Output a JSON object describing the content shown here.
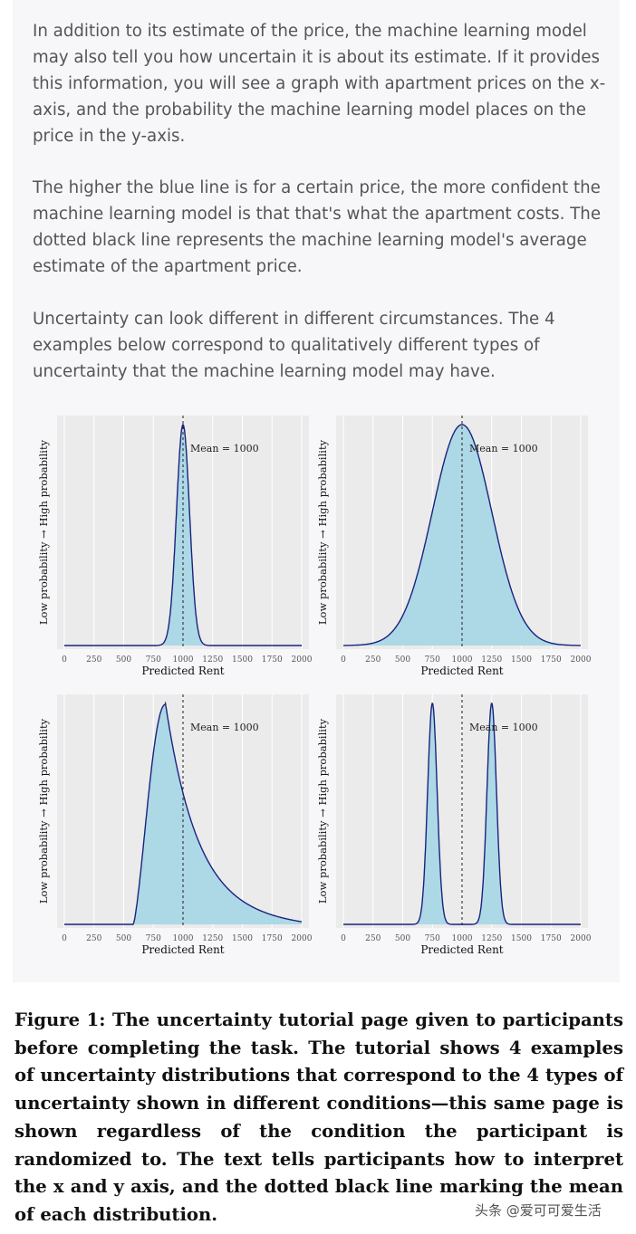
{
  "paragraphs": [
    "In addition to its estimate of the price, the machine learning model may also tell you how uncertain it is about its estimate.  If it provides this information, you will see a graph with apartment prices on the x-axis, and the probability the machine learning model places on the price in the y-axis.",
    "The higher the blue line is for a certain price, the more confident the machine learning model is that that's what the apartment costs.  The dotted black line represents the machine learning model's average estimate of the apartment price.",
    "Uncertainty can look different in different circumstances.  The 4 examples below correspond to qualitatively different types of uncertainty that the machine learning model may have."
  ],
  "caption": "Figure 1: The uncertainty tutorial page given to participants before completing the task. The tutorial shows 4 examples of uncertainty distributions that correspond to the 4 types of uncertainty shown in different conditions—this same page is shown regardless of the condition the participant is randomized to. The text tells participants how to interpret the x and y axis, and the dotted black line marking the mean of each distribution.",
  "watermark": "头条 @爱可可爱生活",
  "colors": {
    "fill": "#add8e6",
    "line": "#1a237e",
    "grid_bg": "#ebebeb"
  },
  "chart_data": [
    {
      "type": "area",
      "xlabel": "Predicted Rent",
      "ylabel": "Low probability → High probability",
      "xlim": [
        0,
        2000
      ],
      "x_ticks": [
        0,
        250,
        500,
        750,
        1000,
        1250,
        1500,
        1750,
        2000
      ],
      "mean": 1000,
      "annotation": "Mean = 1000",
      "components": [
        {
          "mu": 1000,
          "sigma": 55,
          "weight": 1
        }
      ]
    },
    {
      "type": "area",
      "xlabel": "Predicted Rent",
      "ylabel": "Low probability → High probability",
      "xlim": [
        0,
        2000
      ],
      "x_ticks": [
        0,
        250,
        500,
        750,
        1000,
        1250,
        1500,
        1750,
        2000
      ],
      "mean": 1000,
      "annotation": "Mean = 1000",
      "components": [
        {
          "mu": 1000,
          "sigma": 250,
          "weight": 1
        }
      ]
    },
    {
      "type": "area",
      "xlabel": "Predicted Rent",
      "ylabel": "Low probability → High probability",
      "xlim": [
        0,
        2000
      ],
      "x_ticks": [
        0,
        250,
        500,
        750,
        1000,
        1250,
        1500,
        1750,
        2000
      ],
      "mean": 1000,
      "annotation": "Mean = 1000",
      "skewed": {
        "start": 580,
        "mode": 850,
        "end": 2000
      }
    },
    {
      "type": "area",
      "xlabel": "Predicted Rent",
      "ylabel": "Low probability → High probability",
      "xlim": [
        0,
        2000
      ],
      "x_ticks": [
        0,
        250,
        500,
        750,
        1000,
        1250,
        1500,
        1750,
        2000
      ],
      "mean": 1000,
      "annotation": "Mean = 1000",
      "components": [
        {
          "mu": 750,
          "sigma": 40,
          "weight": 1
        },
        {
          "mu": 1250,
          "sigma": 40,
          "weight": 1
        }
      ]
    }
  ]
}
